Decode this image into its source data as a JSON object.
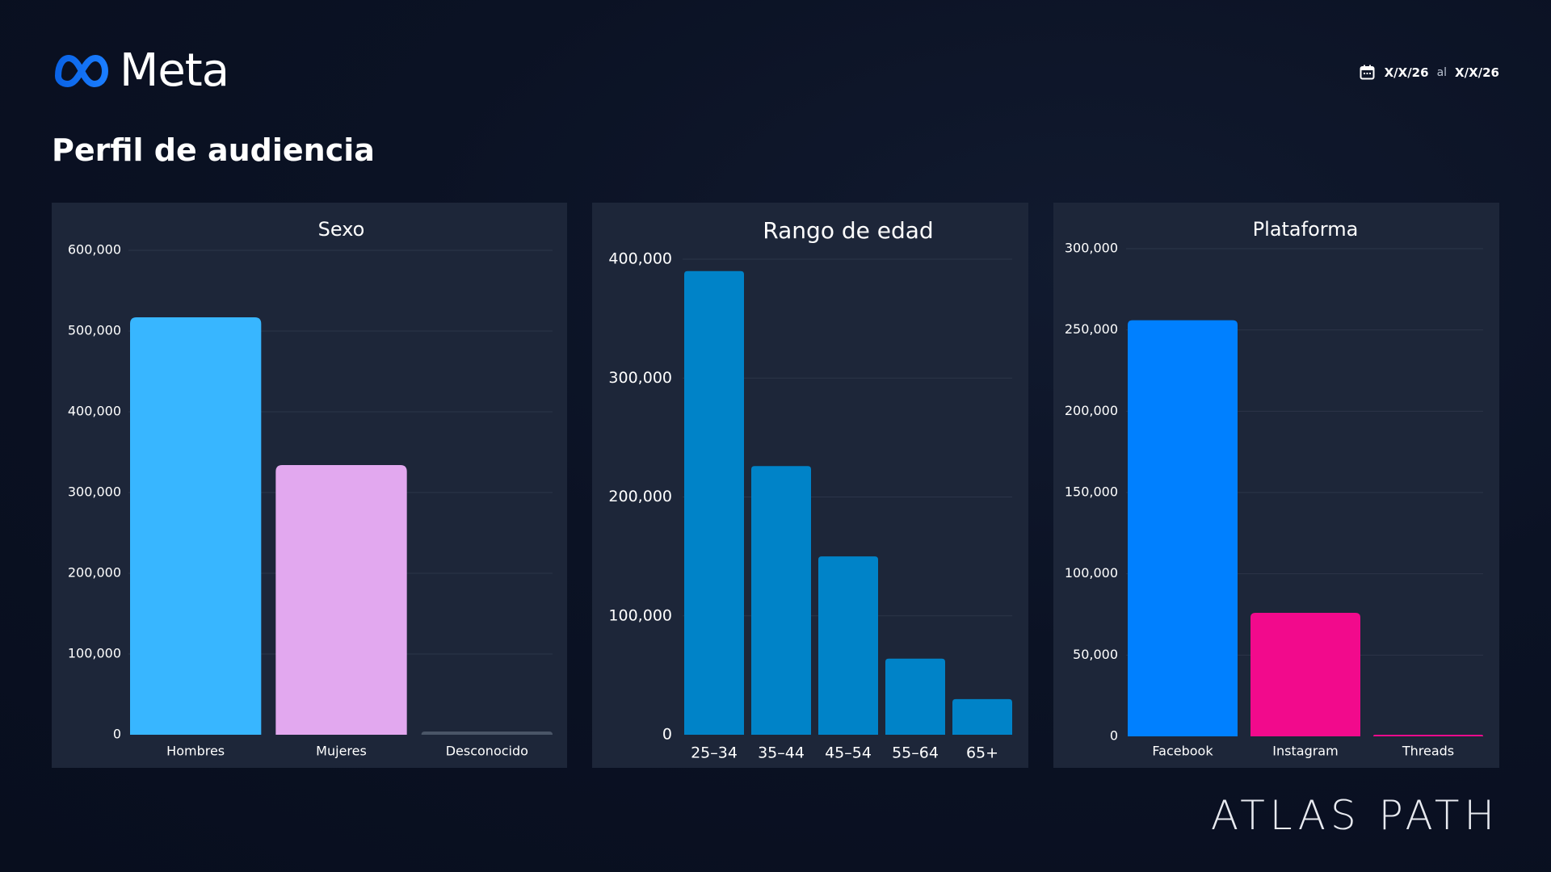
{
  "header": {
    "logo_text": "Meta",
    "page_title": "Perfil de audiencia",
    "date_from": "X/X/26",
    "date_sep": "al",
    "date_to": "X/X/26",
    "calendar_icon": "calendar-icon",
    "logo_icon": "meta-infinity-icon"
  },
  "footer": {
    "brand": "ATLAS PATH"
  },
  "colors": {
    "background": "#0b1224",
    "panel": "#1d2639",
    "meta_blue": "#1877f2",
    "hombres": "#38b6ff",
    "mujeres": "#e2a8ef",
    "desconocido": "#4a5567",
    "edad": "#0083c8",
    "facebook": "#0080ff",
    "instagram": "#f20a8c",
    "threads": "#f20a8c"
  },
  "chart_data": [
    {
      "id": "sexo",
      "type": "bar",
      "title": "Sexo",
      "categories": [
        "Hombres",
        "Mujeres",
        "Desconocido"
      ],
      "values": [
        517000,
        334000,
        4000
      ],
      "bar_colors": [
        "#38b6ff",
        "#e2a8ef",
        "#4a5567"
      ],
      "ylim": [
        0,
        600000
      ],
      "yticks": [
        0,
        100000,
        200000,
        300000,
        400000,
        500000,
        600000
      ],
      "ytick_labels": [
        "0",
        "100,000",
        "200,000",
        "300,000",
        "400,000",
        "500,000",
        "600,000"
      ],
      "xlabel": "",
      "ylabel": "",
      "grid": true
    },
    {
      "id": "edad",
      "type": "bar",
      "title": "Rango de edad",
      "categories": [
        "25–34",
        "35–44",
        "45–54",
        "55–64",
        "65+"
      ],
      "values": [
        390000,
        226000,
        150000,
        64000,
        30000
      ],
      "bar_colors": [
        "#0083c8",
        "#0083c8",
        "#0083c8",
        "#0083c8",
        "#0083c8"
      ],
      "ylim": [
        0,
        400000
      ],
      "yticks": [
        0,
        100000,
        200000,
        300000,
        400000
      ],
      "ytick_labels": [
        "0",
        "100,000",
        "200,000",
        "300,000",
        "400,000"
      ],
      "xlabel": "",
      "ylabel": "",
      "grid": true
    },
    {
      "id": "plataforma",
      "type": "bar",
      "title": "Plataforma",
      "categories": [
        "Facebook",
        "Instagram",
        "Threads"
      ],
      "values": [
        256000,
        76000,
        500
      ],
      "bar_colors": [
        "#0080ff",
        "#f20a8c",
        "#f20a8c"
      ],
      "ylim": [
        0,
        300000
      ],
      "yticks": [
        0,
        50000,
        100000,
        150000,
        200000,
        250000,
        300000
      ],
      "ytick_labels": [
        "0",
        "50,000",
        "100,000",
        "150,000",
        "200,000",
        "250,000",
        "300,000"
      ],
      "xlabel": "",
      "ylabel": "",
      "grid": true
    }
  ]
}
